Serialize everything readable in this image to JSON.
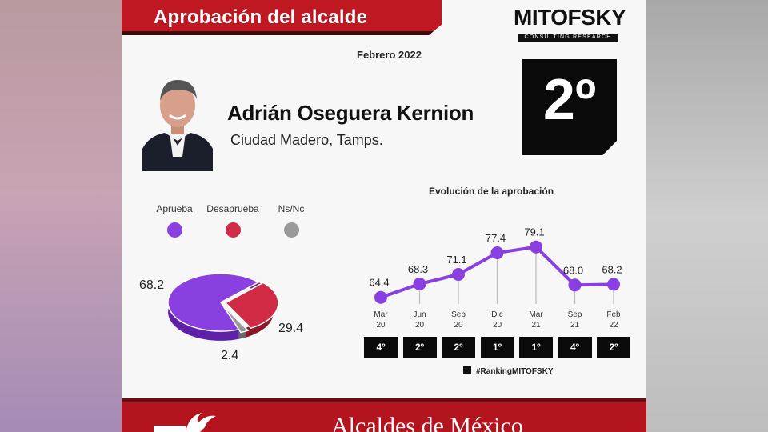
{
  "header": {
    "title": "Aprobación del alcalde",
    "brand": "MITOFSKY",
    "brand_sub": "CONSULTING RESEARCH",
    "date": "Febrero 2022"
  },
  "official": {
    "name": "Adrián Oseguera Kernion",
    "city": "Ciudad Madero, Tamps.",
    "rank": "2º"
  },
  "legend": [
    {
      "label": "Aprueba",
      "color": "#8a3fe0"
    },
    {
      "label": "Desaprueba",
      "color": "#d12a45"
    },
    {
      "label": "Ns/Nc",
      "color": "#9a9a9a"
    }
  ],
  "line_title": "Evolución de la aprobación",
  "hashtag": "#RankingMITOFSKY",
  "footer": {
    "text": "Alcaldes de México"
  },
  "chart_data": [
    {
      "type": "pie",
      "labels": [
        "Aprueba",
        "Desaprueba",
        "Ns/Nc"
      ],
      "values": [
        68.2,
        29.4,
        2.4
      ],
      "value_labels": [
        "68.2",
        "29.4",
        "2.4"
      ],
      "colors": [
        "#8a3fe0",
        "#d12a45",
        "#9a9a9a"
      ]
    },
    {
      "type": "line",
      "title": "Evolución de la aprobación",
      "categories": [
        [
          "Mar",
          "20"
        ],
        [
          "Jun",
          "20"
        ],
        [
          "Sep",
          "20"
        ],
        [
          "Dic",
          "20"
        ],
        [
          "Mar",
          "21"
        ],
        [
          "Sep",
          "21"
        ],
        [
          "Feb",
          "22"
        ]
      ],
      "values": [
        64.4,
        68.3,
        71.1,
        77.4,
        79.1,
        68.0,
        68.2
      ],
      "value_labels": [
        "64.4",
        "68.3",
        "71.1",
        "77.4",
        "79.1",
        "68.0",
        "68.2"
      ],
      "ranks": [
        "4º",
        "2º",
        "2º",
        "1º",
        "1º",
        "4º",
        "2º"
      ],
      "ylim": [
        55,
        90
      ],
      "color": "#8a3fe0"
    }
  ]
}
